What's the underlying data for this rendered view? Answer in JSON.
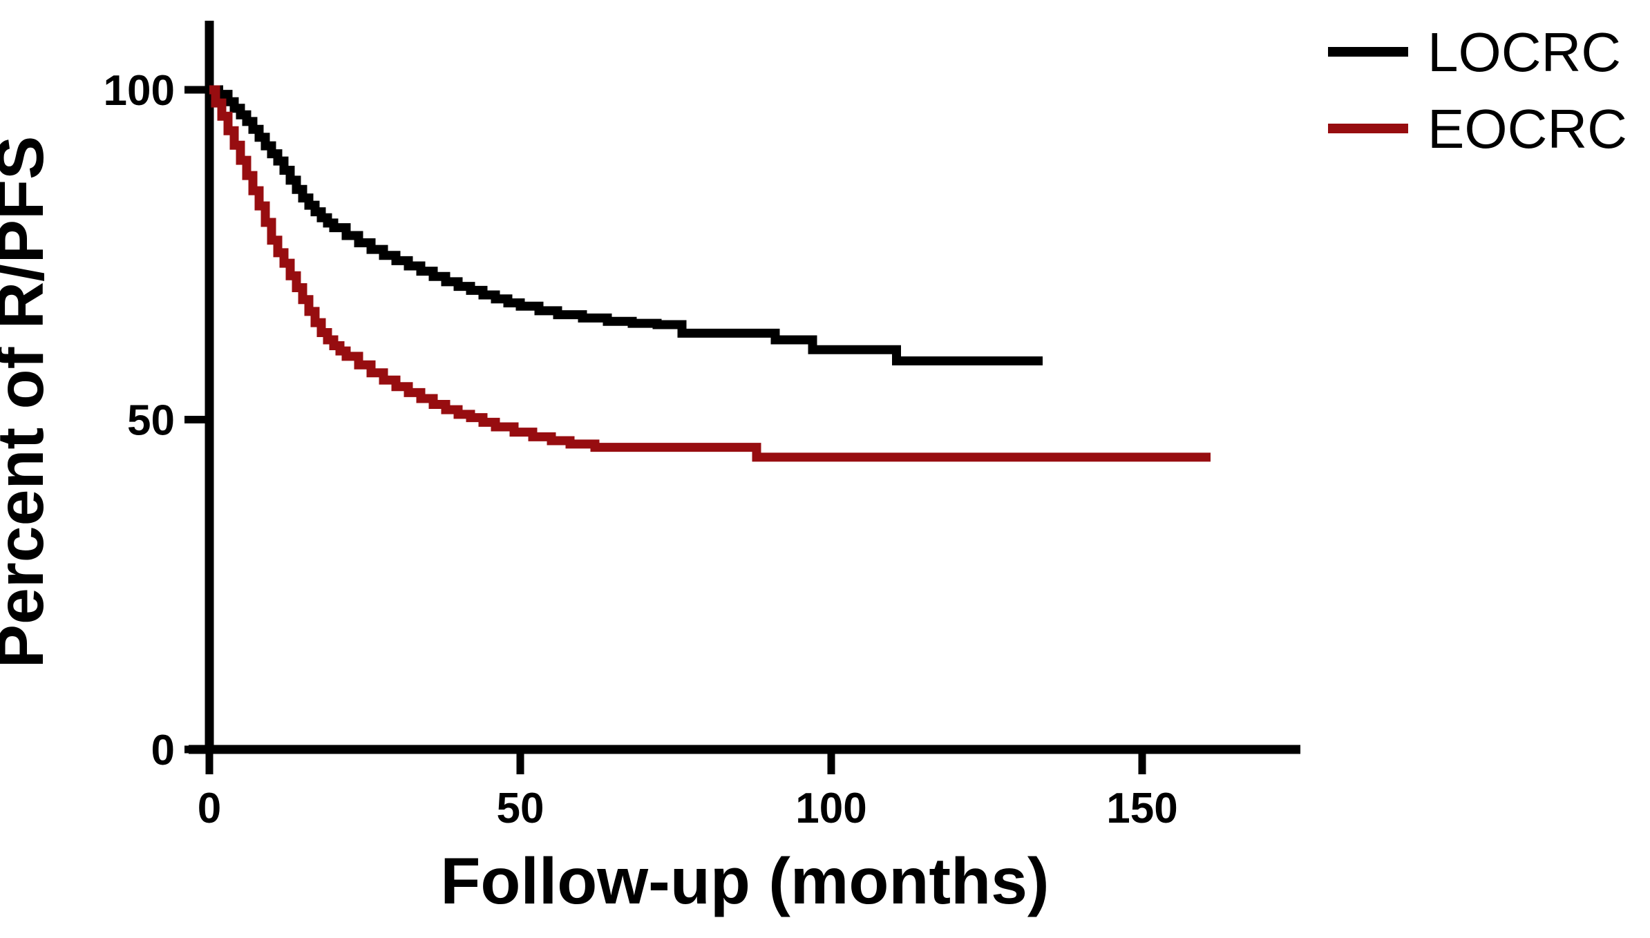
{
  "figure": {
    "background": "#ffffff",
    "axis_color": "#000000"
  },
  "chart_data": {
    "type": "line",
    "subtype": "kaplan-meier-step-survival",
    "title": "",
    "xlabel": "Follow-up (months)",
    "ylabel": "Percent of R/PFS",
    "xlim": [
      0,
      175
    ],
    "ylim": [
      0,
      110
    ],
    "x_ticks": [
      0,
      50,
      100,
      150
    ],
    "y_ticks": [
      0,
      50,
      100
    ],
    "grid": false,
    "legend_position": "top-right",
    "series": [
      {
        "name": "LOCRC",
        "color": "#000000",
        "points": [
          [
            0,
            100
          ],
          [
            1.5,
            99.3
          ],
          [
            3,
            98.2
          ],
          [
            4,
            97.2
          ],
          [
            5,
            96.2
          ],
          [
            6,
            95.2
          ],
          [
            7,
            94.0
          ],
          [
            8,
            92.8
          ],
          [
            9,
            91.5
          ],
          [
            10,
            90.3
          ],
          [
            11,
            89.2
          ],
          [
            12,
            87.8
          ],
          [
            13,
            86.3
          ],
          [
            14,
            84.9
          ],
          [
            15,
            83.6
          ],
          [
            16,
            82.5
          ],
          [
            17,
            81.5
          ],
          [
            18,
            80.6
          ],
          [
            19,
            79.8
          ],
          [
            20,
            79.1
          ],
          [
            22,
            77.9
          ],
          [
            24,
            76.8
          ],
          [
            26,
            75.8
          ],
          [
            28,
            74.9
          ],
          [
            30,
            74.1
          ],
          [
            32,
            73.3
          ],
          [
            34,
            72.5
          ],
          [
            36,
            71.7
          ],
          [
            38,
            70.9
          ],
          [
            40,
            70.2
          ],
          [
            42,
            69.6
          ],
          [
            44,
            68.9
          ],
          [
            46,
            68.3
          ],
          [
            48,
            67.7
          ],
          [
            50,
            67.2
          ],
          [
            53,
            66.5
          ],
          [
            56,
            65.9
          ],
          [
            60,
            65.4
          ],
          [
            64,
            64.9
          ],
          [
            68,
            64.6
          ],
          [
            72,
            64.4
          ],
          [
            76,
            63.1
          ],
          [
            91,
            62.1
          ],
          [
            97,
            60.6
          ],
          [
            110.5,
            58.9
          ],
          [
            134,
            58.9
          ]
        ]
      },
      {
        "name": "EOCRC",
        "color": "#970d10",
        "points": [
          [
            0,
            100
          ],
          [
            1,
            98.0
          ],
          [
            2,
            96.0
          ],
          [
            3,
            93.8
          ],
          [
            4,
            91.6
          ],
          [
            5,
            89.3
          ],
          [
            6,
            87.0
          ],
          [
            7,
            84.7
          ],
          [
            8,
            82.4
          ],
          [
            9,
            79.9
          ],
          [
            10,
            77.2
          ],
          [
            11,
            75.3
          ],
          [
            12,
            73.7
          ],
          [
            13,
            71.8
          ],
          [
            14,
            70.0
          ],
          [
            15,
            68.2
          ],
          [
            16,
            66.4
          ],
          [
            17,
            64.7
          ],
          [
            18,
            63.2
          ],
          [
            19,
            62.1
          ],
          [
            20,
            61.2
          ],
          [
            21,
            60.4
          ],
          [
            22,
            59.6
          ],
          [
            24,
            58.3
          ],
          [
            26,
            57.1
          ],
          [
            28,
            56.0
          ],
          [
            30,
            55.0
          ],
          [
            32,
            54.1
          ],
          [
            34,
            53.2
          ],
          [
            36,
            52.3
          ],
          [
            38,
            51.5
          ],
          [
            40,
            50.8
          ],
          [
            42,
            50.3
          ],
          [
            44,
            49.6
          ],
          [
            46,
            48.9
          ],
          [
            49,
            48.1
          ],
          [
            52,
            47.4
          ],
          [
            55,
            46.8
          ],
          [
            58,
            46.3
          ],
          [
            62,
            45.8
          ],
          [
            88,
            44.3
          ],
          [
            161,
            44.3
          ]
        ]
      }
    ]
  }
}
